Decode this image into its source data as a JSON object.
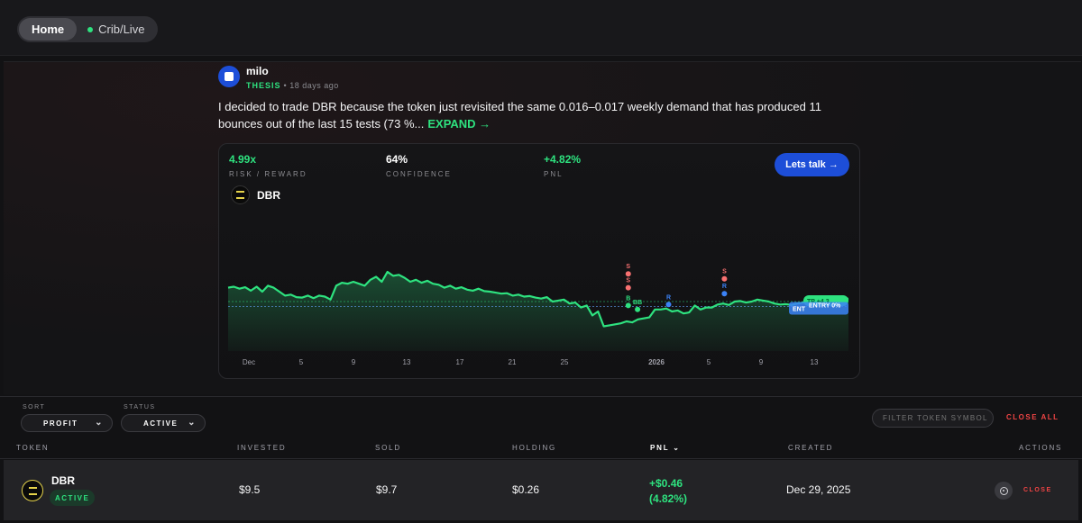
{
  "nav": {
    "home": "Home",
    "crib": "Crib/Live"
  },
  "post": {
    "username": "milo",
    "tag": "THESIS",
    "separator": "•",
    "age": "18 days ago",
    "text": "I decided to trade DBR because the token just revisited the same 0.016–0.017 weekly demand that has produced 11 bounces out of the last 15 tests (73 %...",
    "expand": "EXPAND →"
  },
  "stats": {
    "risk_reward": {
      "value": "4.99x",
      "label": "RISK / REWARD"
    },
    "confidence": {
      "value": "64%",
      "label": "CONFIDENCE"
    },
    "pnl": {
      "value": "+4.82%",
      "label": "PNL"
    }
  },
  "cta": "Lets talk →",
  "chart_token": "DBR",
  "chart_data": {
    "type": "line",
    "x_ticks": [
      "Dec",
      "5",
      "9",
      "13",
      "17",
      "21",
      "25",
      "2026",
      "5",
      "9",
      "13"
    ],
    "series_color": "#2ee27f",
    "series": [
      {
        "values": [
          0.64,
          0.65,
          0.63,
          0.645,
          0.61,
          0.65,
          0.6,
          0.66,
          0.64,
          0.6,
          0.56,
          0.57,
          0.545,
          0.54,
          0.56,
          0.535,
          0.56,
          0.55,
          0.52,
          0.66,
          0.69,
          0.68,
          0.7,
          0.68,
          0.66,
          0.72,
          0.75,
          0.7,
          0.8,
          0.76,
          0.77,
          0.74,
          0.7,
          0.72,
          0.69,
          0.71,
          0.68,
          0.67,
          0.64,
          0.66,
          0.63,
          0.645,
          0.62,
          0.61,
          0.63,
          0.605,
          0.6,
          0.59,
          0.58,
          0.585,
          0.56,
          0.57,
          0.55,
          0.555,
          0.54,
          0.53,
          0.545,
          0.5,
          0.51,
          0.52,
          0.48,
          0.49,
          0.44,
          0.46,
          0.36,
          0.4,
          0.25,
          0.26,
          0.27,
          0.28,
          0.3,
          0.29,
          0.32,
          0.33,
          0.34,
          0.42,
          0.42,
          0.43,
          0.4,
          0.41,
          0.38,
          0.39,
          0.46,
          0.42,
          0.44,
          0.44,
          0.47,
          0.48,
          0.465,
          0.5,
          0.505,
          0.49,
          0.5,
          0.52,
          0.51,
          0.5,
          0.48,
          0.47,
          0.475,
          0.465,
          0.48,
          0.49,
          0.5,
          0.5,
          0.51,
          0.52,
          0.5,
          0.51,
          0.52,
          0.53
        ]
      }
    ],
    "annotations": [
      {
        "label": "S",
        "color": "#f87171",
        "x": 0.645,
        "y": 0.78
      },
      {
        "label": "S",
        "color": "#f87171",
        "x": 0.645,
        "y": 0.64
      },
      {
        "label": "B",
        "color": "#2ee27f",
        "x": 0.645,
        "y": 0.46
      },
      {
        "label": "BB",
        "color": "#2ee27f",
        "x": 0.66,
        "y": 0.42
      },
      {
        "label": "R",
        "color": "#3b82f6",
        "x": 0.71,
        "y": 0.47
      },
      {
        "label": "S",
        "color": "#f87171",
        "x": 0.8,
        "y": 0.73
      },
      {
        "label": "R",
        "color": "#3b82f6",
        "x": 0.8,
        "y": 0.58
      }
    ],
    "tp_line": 0.5,
    "entry_line": 0.45,
    "tp_label": "TP +4.3...",
    "entry_label": "ENTRY 0%",
    "ent_label": "ENT",
    "grid": false
  },
  "controls": {
    "sort_label": "SORT",
    "sort_value": "PROFIT",
    "status_label": "STATUS",
    "status_value": "ACTIVE",
    "filter_placeholder": "FILTER TOKEN SYMBOL",
    "close_all": "CLOSE ALL"
  },
  "table": {
    "headers": [
      "TOKEN",
      "INVESTED",
      "SOLD",
      "HOLDING",
      "PNL",
      "CREATED",
      "ACTIONS"
    ],
    "pnl_chevron": "⌄",
    "rows": [
      {
        "symbol": "DBR",
        "status": "ACTIVE",
        "invested": "$9.5",
        "sold": "$9.7",
        "holding": "$0.26",
        "pnl": "+$0.46",
        "pnl_pct": "(4.82%)",
        "created": "Dec 29, 2025",
        "action": "CLOSE"
      }
    ]
  }
}
